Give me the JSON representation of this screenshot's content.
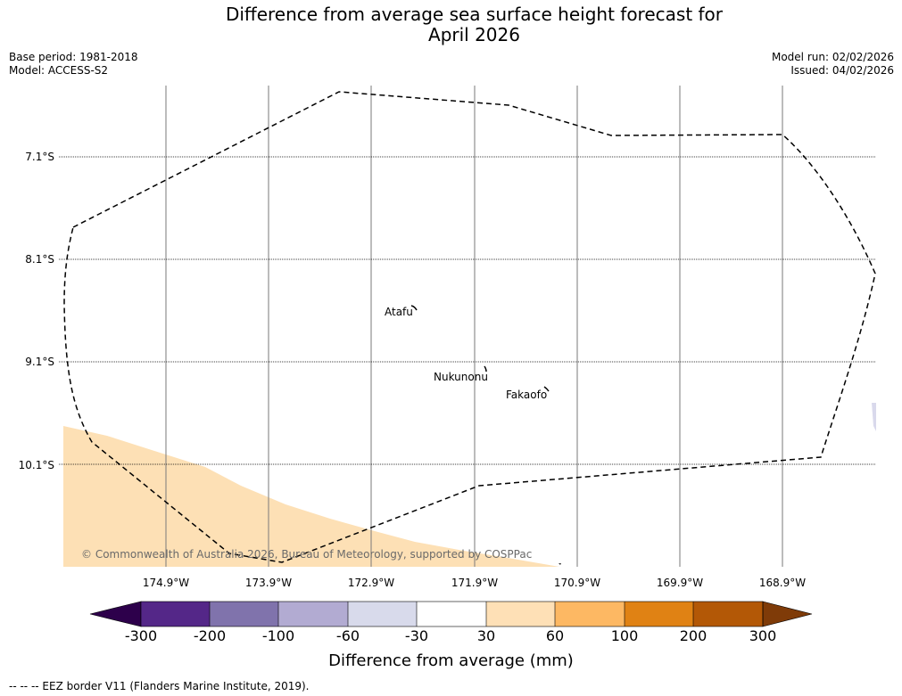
{
  "title": {
    "line1": "Difference from average sea surface height forecast for",
    "line2": "April 2026"
  },
  "meta": {
    "base_period": "Base period: 1981-2018",
    "model": "Model: ACCESS-S2",
    "model_run": "Model run: 02/02/2026",
    "issued": "Issued: 04/02/2026"
  },
  "map": {
    "lat_labels": [
      "7.1°S",
      "8.1°S",
      "9.1°S",
      "10.1°S"
    ],
    "lon_labels": [
      "174.9°W",
      "173.9°W",
      "172.9°W",
      "171.9°W",
      "170.9°W",
      "169.9°W",
      "168.9°W"
    ],
    "places": [
      "Atafu",
      "Nukunonu",
      "Fakaofo"
    ],
    "copyright": "© Commonwealth of Australia 2026, Bureau of Meteorology, supported by COSPPac",
    "colors": {
      "anomaly_fill": "#fde0b5",
      "grid": "#7a7a7a",
      "eez": "#000000",
      "land_edge": "#d9d9ec"
    }
  },
  "colorbar": {
    "label": "Difference from average (mm)",
    "ticks": [
      "-300",
      "-200",
      "-100",
      "-60",
      "-30",
      "30",
      "60",
      "100",
      "200",
      "300"
    ],
    "colors": {
      "below": "#2d004b",
      "c1": "#542788",
      "c2": "#8073ac",
      "c3": "#b2abd2",
      "c4": "#d8daeb",
      "c5": "#ffffff",
      "c6": "#fee0b6",
      "c7": "#fdb863",
      "c8": "#e08214",
      "c9": "#b35806",
      "above": "#7f3b08"
    }
  },
  "legend_note": "--  --  -- EEZ border V11 (Flanders Marine Institute, 2019)."
}
